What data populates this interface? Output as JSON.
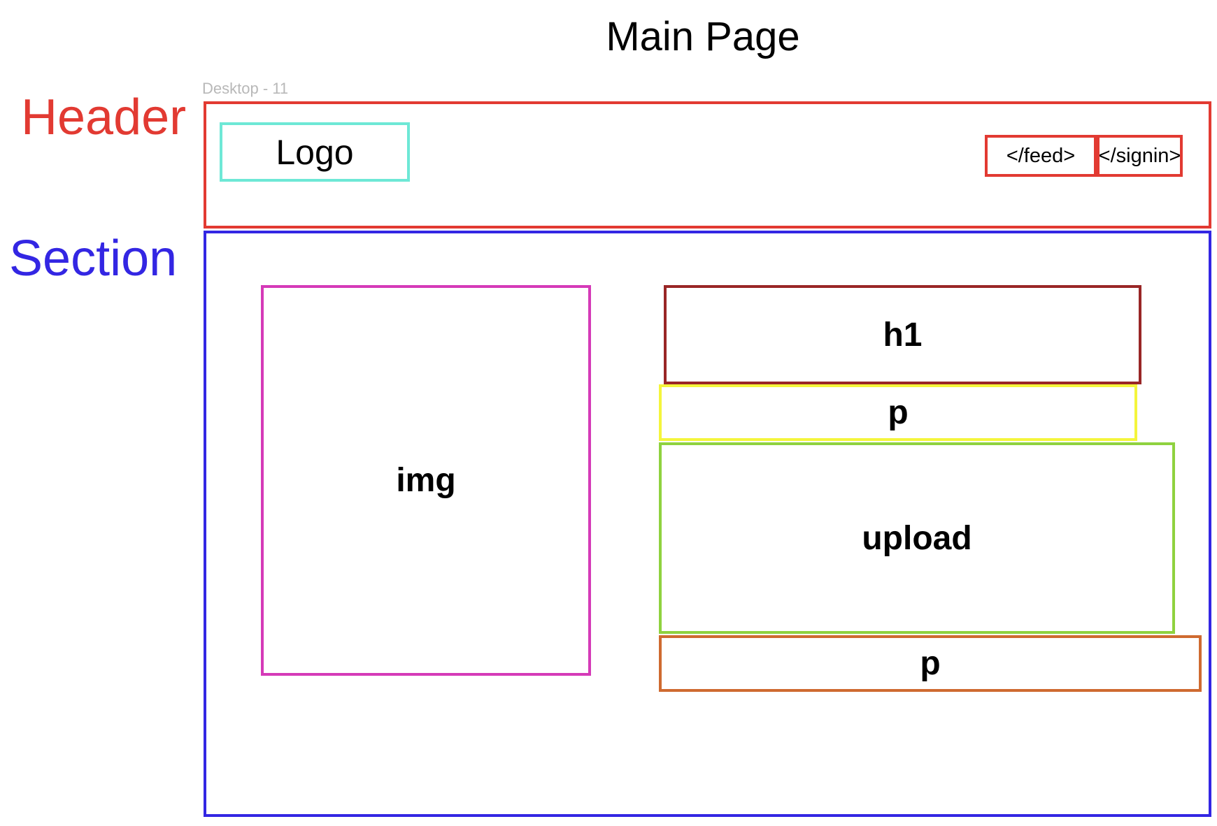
{
  "title": "Main Page",
  "frame_label": "Desktop - 11",
  "labels": {
    "header": "Header",
    "section": "Section"
  },
  "colors": {
    "header": "#e23a32",
    "section": "#3326e3",
    "logo": "#6ee8d6",
    "nav": "#e23a32",
    "img": "#d53ab8",
    "h1": "#992626",
    "p1": "#f4f53c",
    "upload": "#8fd23f",
    "p2": "#cf6a30"
  },
  "header": {
    "logo": "Logo",
    "nav_feed": "</feed>",
    "nav_signin": "</signin>"
  },
  "section": {
    "img": "img",
    "h1": "h1",
    "p1": "p",
    "upload": "upload",
    "p2": "p"
  }
}
